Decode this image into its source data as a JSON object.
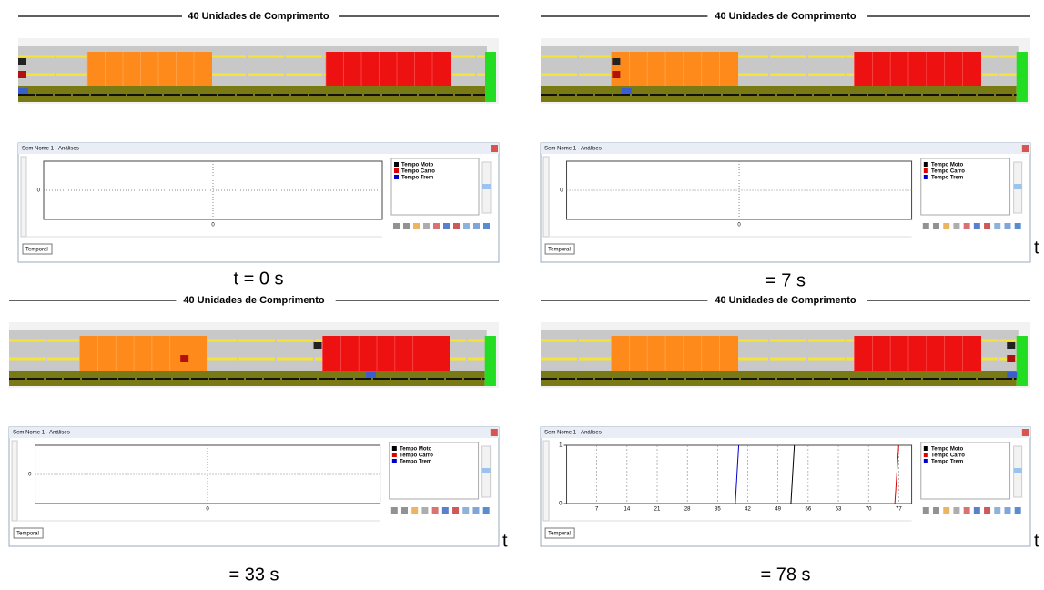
{
  "panels": [
    {
      "ruler_label": "40 Unidades de Comprimento",
      "window_title": "Sem Nome 1 - Análises",
      "legend": [
        {
          "name": "Tempo Moto",
          "color": "#000000"
        },
        {
          "name": "Tempo Carro",
          "color": "#dd0000"
        },
        {
          "name": "Tempo Trem",
          "color": "#0000cc"
        }
      ],
      "yticks": [
        0
      ],
      "xticks": [
        0
      ],
      "tab": "Temporal",
      "caption": "t = 0 s"
    },
    {
      "ruler_label": "40 Unidades de Comprimento",
      "window_title": "Sem Nome 1 - Análises",
      "legend": [
        {
          "name": "Tempo Moto",
          "color": "#000000"
        },
        {
          "name": "Tempo Carro",
          "color": "#dd0000"
        },
        {
          "name": "Tempo Trem",
          "color": "#0000cc"
        }
      ],
      "yticks": [
        0
      ],
      "xticks": [
        0
      ],
      "tab": "Temporal",
      "caption": "= 7 s",
      "caption_t": "t"
    },
    {
      "ruler_label": "40 Unidades de Comprimento",
      "window_title": "Sem Nome 1 - Análises",
      "legend": [
        {
          "name": "Tempo Moto",
          "color": "#000000"
        },
        {
          "name": "Tempo Carro",
          "color": "#dd0000"
        },
        {
          "name": "Tempo Trem",
          "color": "#0000cc"
        }
      ],
      "yticks": [
        0
      ],
      "xticks": [
        0
      ],
      "tab": "Temporal",
      "caption": "= 33 s",
      "caption_t": "t"
    },
    {
      "ruler_label": "40 Unidades de Comprimento",
      "window_title": "Sem Nome 1 - Análises",
      "tab": "Temporal",
      "caption": "= 78 s",
      "caption_t": "t",
      "chart": {
        "type": "line",
        "xlim": [
          0,
          80
        ],
        "ylim": [
          0,
          1
        ],
        "xticks": [
          7,
          14,
          21,
          28,
          35,
          42,
          49,
          56,
          63,
          70,
          77
        ],
        "yticks": [
          0,
          1
        ],
        "series": [
          {
            "name": "Tempo Moto",
            "color": "#000000",
            "x": [
              52.0,
              52.8
            ],
            "values": [
              0,
              1
            ]
          },
          {
            "name": "Tempo Carro",
            "color": "#dd0000",
            "x": [
              76.1,
              77.0
            ],
            "values": [
              0,
              1
            ]
          },
          {
            "name": "Tempo Trem",
            "color": "#0000cc",
            "x": [
              39.1,
              39.9
            ],
            "values": [
              0,
              1
            ]
          }
        ]
      }
    }
  ]
}
